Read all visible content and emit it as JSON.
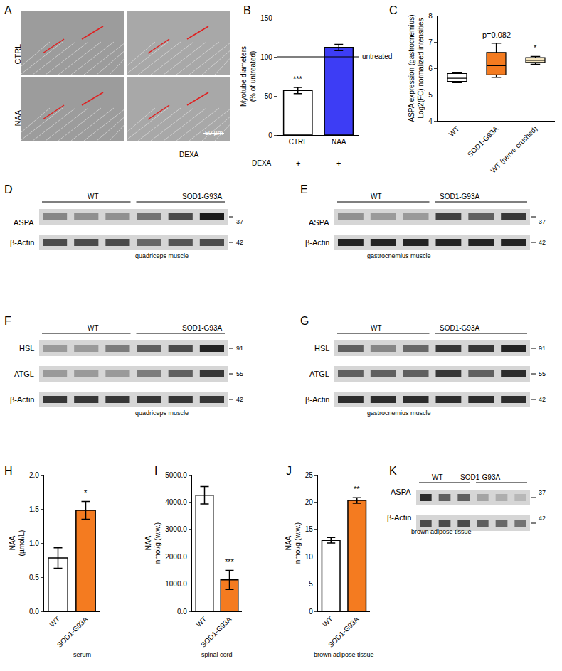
{
  "chart_data": [
    {
      "letter": "B",
      "type": "bar",
      "categories": [
        "CTRL",
        "NAA"
      ],
      "values": [
        57,
        112
      ],
      "errors": [
        4,
        4
      ],
      "colors": [
        "#ffffff",
        "#3d3df5"
      ],
      "y_label": "Myotube diameters\n(% of untreated)",
      "ylim": [
        0,
        150
      ],
      "yticks": [
        0,
        50,
        100,
        150
      ],
      "treatment_label": "DEXA",
      "treatment": [
        "+",
        "+"
      ],
      "reference_line": {
        "value": 100,
        "label": "untreated"
      },
      "annotations": [
        {
          "category": "CTRL",
          "text": "***"
        }
      ]
    },
    {
      "letter": "C",
      "type": "box",
      "categories": [
        "WT",
        "SOD1-G93A",
        "WT (nerve crushed)"
      ],
      "boxes": [
        {
          "min": 5.45,
          "q1": 5.5,
          "median": 5.62,
          "q3": 5.8,
          "max": 5.85
        },
        {
          "min": 5.65,
          "q1": 5.75,
          "median": 6.1,
          "q3": 6.6,
          "max": 6.95
        },
        {
          "min": 6.15,
          "q1": 6.22,
          "median": 6.3,
          "q3": 6.4,
          "max": 6.45
        }
      ],
      "colors": [
        "#ffffff",
        "#f47b20",
        "#f5e6c0"
      ],
      "y_label": "ASPA expression (gastrocnemius)\nLog2(FC) normalized intensities",
      "ylim": [
        4,
        8
      ],
      "yticks": [
        4,
        5,
        6,
        7,
        8
      ],
      "annotations": [
        {
          "category": "SOD1-G93A",
          "text": "p=0.082"
        },
        {
          "category": "WT (nerve crushed)",
          "text": "*"
        }
      ]
    },
    {
      "letter": "H",
      "type": "bar",
      "categories": [
        "WT",
        "SOD1-G93A"
      ],
      "values": [
        0.78,
        1.48
      ],
      "errors": [
        0.15,
        0.13
      ],
      "colors": [
        "#ffffff",
        "#f47b20"
      ],
      "y_label": "NAA\n(µmol/L)",
      "caption": "serum",
      "ylim": [
        0,
        2
      ],
      "yticks": [
        {
          "value": 0,
          "label": "0.0"
        },
        {
          "value": 0.5,
          "label": "0.5"
        },
        {
          "value": 1,
          "label": "1.0"
        },
        {
          "value": 1.5,
          "label": "1.5"
        },
        {
          "value": 2,
          "label": "2.0"
        }
      ],
      "annotations": [
        {
          "category": "SOD1-G93A",
          "text": "*"
        }
      ]
    },
    {
      "letter": "I",
      "type": "bar",
      "categories": [
        "WT",
        "SOD1-G93A"
      ],
      "values": [
        4250,
        1150
      ],
      "errors": [
        320,
        350
      ],
      "colors": [
        "#ffffff",
        "#f47b20"
      ],
      "y_label": "NAA\nnmol/g (w.w.)",
      "caption": "spinal cord",
      "ylim": [
        0,
        5000
      ],
      "yticks": [
        {
          "value": 0,
          "label": "0.0"
        },
        {
          "value": 1000,
          "label": "1000.0"
        },
        {
          "value": 2000,
          "label": "2000.0"
        },
        {
          "value": 3000,
          "label": "3000.0"
        },
        {
          "value": 4000,
          "label": "4000.0"
        },
        {
          "value": 5000,
          "label": "5000.0"
        }
      ],
      "annotations": [
        {
          "category": "SOD1-G93A",
          "text": "***"
        }
      ]
    },
    {
      "letter": "J",
      "type": "bar",
      "categories": [
        "WT",
        "SOD1-G93A"
      ],
      "values": [
        13,
        20.3
      ],
      "errors": [
        0.5,
        0.5
      ],
      "colors": [
        "#ffffff",
        "#f47b20"
      ],
      "y_label": "NAA\nnmol/g (w.w.)",
      "caption": "brown adipose tissue",
      "ylim": [
        0,
        25
      ],
      "yticks": [
        0,
        5,
        10,
        15,
        20,
        25
      ],
      "annotations": [
        {
          "category": "SOD1-G93A",
          "text": "**"
        }
      ]
    }
  ],
  "images": {
    "letter": "A",
    "row_labels": [
      "CTRL",
      "NAA"
    ],
    "bottom_right_label": "DEXA",
    "scale_bar": "50 µm"
  },
  "blots": [
    {
      "letter": "D",
      "groups": [
        "WT",
        "SOD1-G93A"
      ],
      "lanes_per_group": [
        3,
        3
      ],
      "caption": "quadriceps muscle",
      "rows": [
        {
          "label": "ASPA",
          "kda": 37,
          "intensities": [
            0.4,
            0.35,
            0.35,
            0.5,
            0.7,
            0.95
          ]
        },
        {
          "label": "β-Actin",
          "kda": 42,
          "intensities": [
            0.7,
            0.7,
            0.7,
            0.55,
            0.65,
            0.7
          ]
        }
      ]
    },
    {
      "letter": "E",
      "groups": [
        "WT",
        "SOD1-G93A"
      ],
      "lanes_per_group": [
        3,
        3
      ],
      "caption": "gastrocnemius muscle",
      "rows": [
        {
          "label": "ASPA",
          "kda": 37,
          "intensities": [
            0.35,
            0.3,
            0.3,
            0.75,
            0.6,
            0.8
          ]
        },
        {
          "label": "β-Actin",
          "kda": 42,
          "intensities": [
            0.9,
            0.9,
            0.9,
            0.9,
            0.9,
            0.9
          ]
        }
      ]
    },
    {
      "letter": "F",
      "groups": [
        "WT",
        "SOD1-G93A"
      ],
      "lanes_per_group": [
        3,
        3
      ],
      "caption": "quadriceps muscle",
      "rows": [
        {
          "label": "HSL",
          "kda": 91,
          "intensities": [
            0.3,
            0.3,
            0.45,
            0.6,
            0.7,
            0.9
          ]
        },
        {
          "label": "ATGL",
          "kda": 55,
          "intensities": [
            0.3,
            0.3,
            0.3,
            0.45,
            0.6,
            0.8
          ]
        },
        {
          "label": "β-Actin",
          "kda": 42,
          "intensities": [
            0.8,
            0.8,
            0.8,
            0.8,
            0.8,
            0.8
          ]
        }
      ]
    },
    {
      "letter": "G",
      "groups": [
        "WT",
        "SOD1-G93A"
      ],
      "lanes_per_group": [
        3,
        3
      ],
      "caption": "gastrocnemius muscle",
      "rows": [
        {
          "label": "HSL",
          "kda": 91,
          "intensities": [
            0.6,
            0.4,
            0.55,
            0.8,
            0.8,
            0.9
          ]
        },
        {
          "label": "ATGL",
          "kda": 55,
          "intensities": [
            0.6,
            0.6,
            0.6,
            0.8,
            0.6,
            0.85
          ]
        },
        {
          "label": "β-Actin",
          "kda": 42,
          "intensities": [
            0.85,
            0.85,
            0.85,
            0.85,
            0.85,
            0.85
          ]
        }
      ]
    },
    {
      "letter": "K",
      "groups": [
        "WT",
        "SOD1-G93A"
      ],
      "lanes_per_group": [
        3,
        3
      ],
      "caption": "brown adipose tissue",
      "rows": [
        {
          "label": "ASPA",
          "kda": 37,
          "intensities": [
            0.85,
            0.6,
            0.6,
            0.25,
            0.2,
            0.15
          ]
        },
        {
          "label": "β-Actin",
          "kda": 42,
          "intensities": [
            0.7,
            0.7,
            0.7,
            0.6,
            0.55,
            0.5
          ]
        }
      ]
    }
  ]
}
